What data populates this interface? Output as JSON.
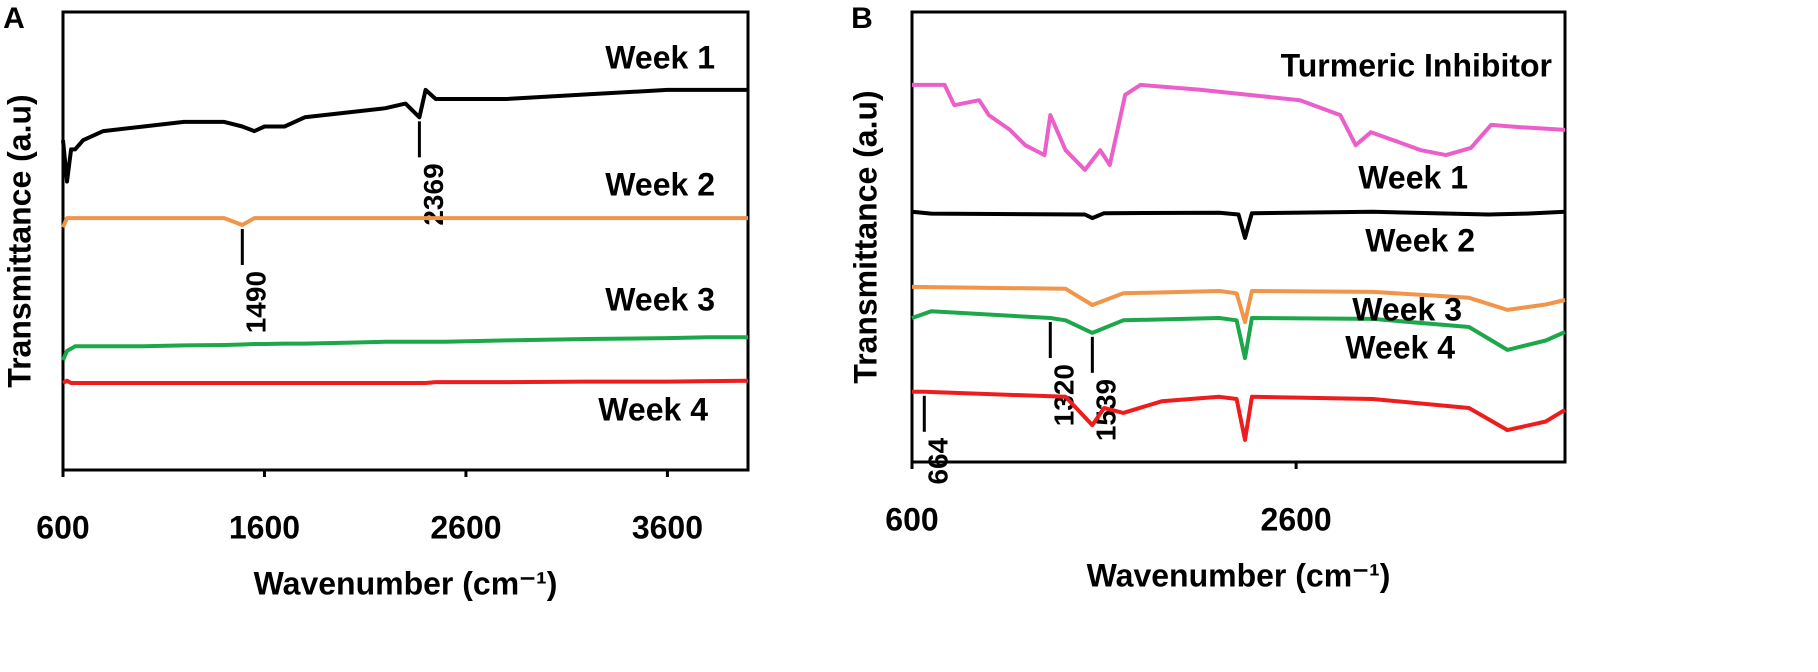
{
  "chart_data": [
    {
      "type": "line",
      "panel_label": "A",
      "xlabel": "Wavenumber (cm⁻¹)",
      "ylabel": "Transmittance (a.u)",
      "xlim": [
        600,
        4000
      ],
      "xticks": [
        600,
        1600,
        2600,
        3600
      ],
      "ylim": [
        0,
        100
      ],
      "x": [
        600,
        620,
        640,
        660,
        700,
        800,
        1000,
        1200,
        1400,
        1490,
        1550,
        1600,
        1700,
        1800,
        2000,
        2200,
        2300,
        2369,
        2400,
        2450,
        2500,
        2800,
        3200,
        3600,
        3800,
        4000
      ],
      "series": [
        {
          "name": "Week 1",
          "color": "#000000",
          "markers": [
            2369
          ],
          "values": [
            72,
            63,
            70,
            70,
            72,
            74,
            75,
            76,
            76,
            75,
            74,
            75,
            75,
            77,
            78,
            79,
            80,
            77,
            83,
            81,
            81,
            81,
            82,
            83,
            83,
            83
          ]
        },
        {
          "name": "Week 2",
          "color": "#f0954a",
          "markers": [
            1490
          ],
          "values": [
            53,
            55,
            55,
            55,
            55,
            55,
            55,
            55,
            55,
            53.5,
            55,
            55,
            55,
            55,
            55,
            55,
            55,
            55,
            55,
            55,
            55,
            55,
            55,
            55,
            55,
            55
          ]
        },
        {
          "name": "Week 3",
          "color": "#1ca84a",
          "values": [
            24,
            26,
            26.5,
            27,
            27,
            27,
            27,
            27.2,
            27.3,
            27.4,
            27.5,
            27.5,
            27.6,
            27.6,
            27.8,
            28,
            28,
            28,
            28,
            28,
            28,
            28.3,
            28.6,
            28.8,
            29,
            29
          ]
        },
        {
          "name": "Week 4",
          "color": "#ee1c1c",
          "values": [
            19,
            19.5,
            19,
            19,
            19,
            19,
            19,
            19,
            19,
            19,
            19,
            19,
            19,
            19,
            19,
            19,
            19,
            19,
            19,
            19.2,
            19.2,
            19.2,
            19.3,
            19.3,
            19.4,
            19.5
          ]
        }
      ]
    },
    {
      "type": "line",
      "panel_label": "B",
      "xlabel": "Wavenumber (cm⁻¹)",
      "ylabel": "Transmittance (a.u)",
      "xlim": [
        600,
        4000
      ],
      "xticks": [
        600,
        2600
      ],
      "ylim": [
        0,
        100
      ],
      "series": [
        {
          "name": "Turmeric Inhibitor",
          "color": "#ea5fc9",
          "x": [
            600,
            770,
            820,
            950,
            1000,
            1110,
            1190,
            1290,
            1320,
            1400,
            1500,
            1580,
            1630,
            1710,
            1790,
            2100,
            2620,
            2830,
            2910,
            2990,
            3250,
            3380,
            3510,
            3615,
            3770,
            4000
          ],
          "values": [
            83.8,
            83.8,
            79.3,
            80.4,
            77.1,
            73.8,
            70.4,
            68.2,
            77.1,
            69.3,
            64.9,
            69.3,
            66,
            81.6,
            83.8,
            82.7,
            80.4,
            77.1,
            70.4,
            73.3,
            69.3,
            68.2,
            69.8,
            74.9,
            74.4,
            73.8
          ]
        },
        {
          "name": "Week 1",
          "color": "#000000",
          "x": [
            600,
            700,
            1500,
            1539,
            1600,
            2200,
            2300,
            2334,
            2370,
            3000,
            3600,
            3800,
            4000
          ],
          "values": [
            55.6,
            55.2,
            55,
            54.2,
            55.3,
            55.4,
            55,
            49.8,
            55.3,
            55.6,
            55,
            55.2,
            55.6
          ]
        },
        {
          "name": "Week 2",
          "color": "#f0954a",
          "x": [
            600,
            1400,
            1539,
            1700,
            2200,
            2290,
            2334,
            2370,
            3000,
            3500,
            3700,
            3900,
            4000
          ],
          "values": [
            38.9,
            38.5,
            34.9,
            37.5,
            38,
            37.5,
            31.1,
            38,
            37.8,
            36.5,
            33.8,
            35,
            36
          ]
        },
        {
          "name": "Week 3",
          "color": "#1ca84a",
          "markers": [
            1320,
            1539
          ],
          "x": [
            600,
            700,
            1320,
            1400,
            1539,
            1700,
            2200,
            2290,
            2334,
            2370,
            3000,
            3500,
            3700,
            3900,
            4000
          ],
          "values": [
            32,
            33.5,
            32,
            31.5,
            28.7,
            31.5,
            32,
            31.5,
            23.1,
            32,
            31.8,
            30,
            24.9,
            27,
            28.9
          ]
        },
        {
          "name": "Week 4",
          "color": "#ee1c1c",
          "markers": [
            664
          ],
          "x": [
            600,
            664,
            1400,
            1539,
            1600,
            1700,
            1900,
            2200,
            2290,
            2334,
            2370,
            3000,
            3500,
            3700,
            3900,
            4000
          ],
          "values": [
            15.6,
            15.6,
            14.5,
            8.2,
            12,
            10.9,
            13.5,
            14.5,
            14,
            4.9,
            14.5,
            14,
            12,
            7.1,
            9,
            11.6
          ]
        }
      ]
    }
  ]
}
